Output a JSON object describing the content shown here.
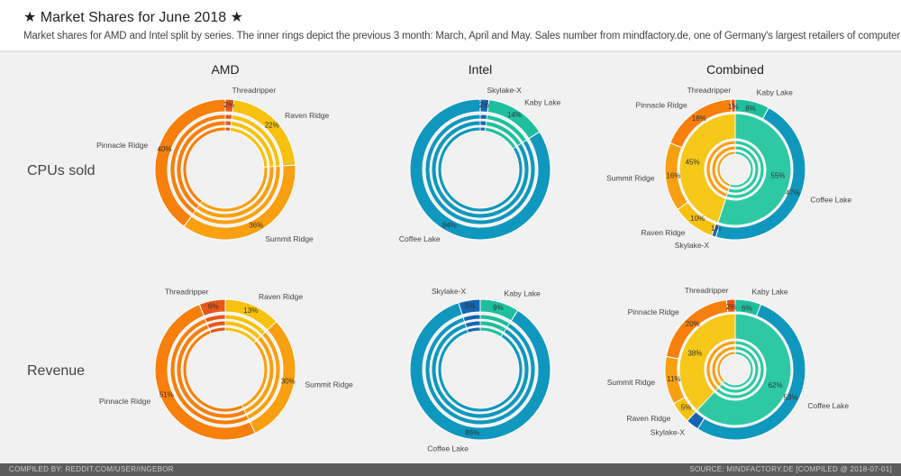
{
  "header": {
    "title": "★ Market Shares for June 2018 ★",
    "subtitle": "Market shares for AMD and Intel split by series. The inner rings depict the previous 3 month: March, April and May. Sales number from mindfactory.de, one of Germany's largest retailers of computer parts."
  },
  "footer": {
    "left": "COMPILED BY: REDDIT.COM/USER/INGEBOR",
    "right": "SOURCE: MINDFACTORY.DE [COMPILED @ 2018-07-01]"
  },
  "colors": {
    "Threadripper": "#e8571a",
    "Pinnacle Ridge": "#f77f0c",
    "Summit Ridge": "#f9a011",
    "Raven Ridge": "#f6c10f",
    "Kaby Lake": "#1fbf9e",
    "Coffee Lake": "#1097be",
    "Skylake-X": "#1466b3"
  },
  "chart_data": {
    "type": "donut",
    "columns": [
      "AMD",
      "Intel",
      "Combined"
    ],
    "rows": [
      "CPUs sold",
      "Revenue"
    ],
    "charts": [
      {
        "column": "AMD",
        "row": "CPUs sold",
        "slices": [
          {
            "name": "Threadripper",
            "label": "Threadripper",
            "value": 2,
            "pct": "2%"
          },
          {
            "name": "Raven Ridge",
            "label": "Raven Ridge",
            "value": 22,
            "pct": "22%"
          },
          {
            "name": "Summit Ridge",
            "label": "Summit Ridge",
            "value": 36,
            "pct": "36%"
          },
          {
            "name": "Pinnacle Ridge",
            "label": "Pinnacle Ridge",
            "value": 40,
            "pct": "40%"
          }
        ]
      },
      {
        "column": "Intel",
        "row": "CPUs sold",
        "slices": [
          {
            "name": "Skylake-X",
            "label": "Skylake-X",
            "value": 2,
            "pct": "2%"
          },
          {
            "name": "Kaby Lake",
            "label": "Kaby Lake",
            "value": 14,
            "pct": "14%"
          },
          {
            "name": "Coffee Lake",
            "label": "Coffee Lake",
            "value": 84,
            "pct": "84%"
          }
        ]
      },
      {
        "column": "Combined",
        "row": "CPUs sold",
        "inner": [
          {
            "name": "Intel",
            "value": 55,
            "pct": "55%"
          },
          {
            "name": "AMD",
            "value": 45,
            "pct": "45%"
          }
        ],
        "slices": [
          {
            "name": "Kaby Lake",
            "label": "Kaby Lake",
            "value": 8,
            "pct": "8%"
          },
          {
            "name": "Coffee Lake",
            "label": "Coffee Lake",
            "value": 47,
            "pct": "47%"
          },
          {
            "name": "Skylake-X",
            "label": "Skylake-X",
            "value": 1,
            "pct": "1%"
          },
          {
            "name": "Raven Ridge",
            "label": "Raven Ridge",
            "value": 10,
            "pct": "10%"
          },
          {
            "name": "Summit Ridge",
            "label": "Summit Ridge",
            "value": 16,
            "pct": "16%"
          },
          {
            "name": "Pinnacle Ridge",
            "label": "Pinnacle Ridge",
            "value": 18,
            "pct": "18%"
          },
          {
            "name": "Threadripper",
            "label": "Threadripper",
            "value": 1,
            "pct": "1%"
          }
        ]
      },
      {
        "column": "AMD",
        "row": "Revenue",
        "slices": [
          {
            "name": "Raven Ridge",
            "label": "Raven Ridge",
            "value": 13,
            "pct": "13%"
          },
          {
            "name": "Summit Ridge",
            "label": "Summit Ridge",
            "value": 30,
            "pct": "30%"
          },
          {
            "name": "Pinnacle Ridge",
            "label": "Pinnacle Ridge",
            "value": 51,
            "pct": "51%"
          },
          {
            "name": "Threadripper",
            "label": "Threadripper",
            "value": 6,
            "pct": "6%"
          }
        ]
      },
      {
        "column": "Intel",
        "row": "Revenue",
        "slices": [
          {
            "name": "Kaby Lake",
            "label": "Kaby Lake",
            "value": 9,
            "pct": "9%"
          },
          {
            "name": "Coffee Lake",
            "label": "Coffee Lake",
            "value": 86,
            "pct": "86%"
          },
          {
            "name": "Skylake-X",
            "label": "Skylake-X",
            "value": 5,
            "pct": "5%"
          }
        ]
      },
      {
        "column": "Combined",
        "row": "Revenue",
        "inner": [
          {
            "name": "Intel",
            "value": 62,
            "pct": "62%"
          },
          {
            "name": "AMD",
            "value": 38,
            "pct": "38%"
          }
        ],
        "slices": [
          {
            "name": "Kaby Lake",
            "label": "Kaby Lake",
            "value": 6,
            "pct": "6%"
          },
          {
            "name": "Coffee Lake",
            "label": "Coffee Lake",
            "value": 53,
            "pct": "53%"
          },
          {
            "name": "Skylake-X",
            "label": "Skylake-X",
            "value": 3,
            "pct": ""
          },
          {
            "name": "Raven Ridge",
            "label": "Raven Ridge",
            "value": 5,
            "pct": "5%"
          },
          {
            "name": "Summit Ridge",
            "label": "Summit Ridge",
            "value": 11,
            "pct": "11%"
          },
          {
            "name": "Pinnacle Ridge",
            "label": "Pinnacle Ridge",
            "value": 20,
            "pct": "20%"
          },
          {
            "name": "Threadripper",
            "label": "Threadripper",
            "value": 2,
            "pct": "2%"
          }
        ]
      }
    ]
  }
}
